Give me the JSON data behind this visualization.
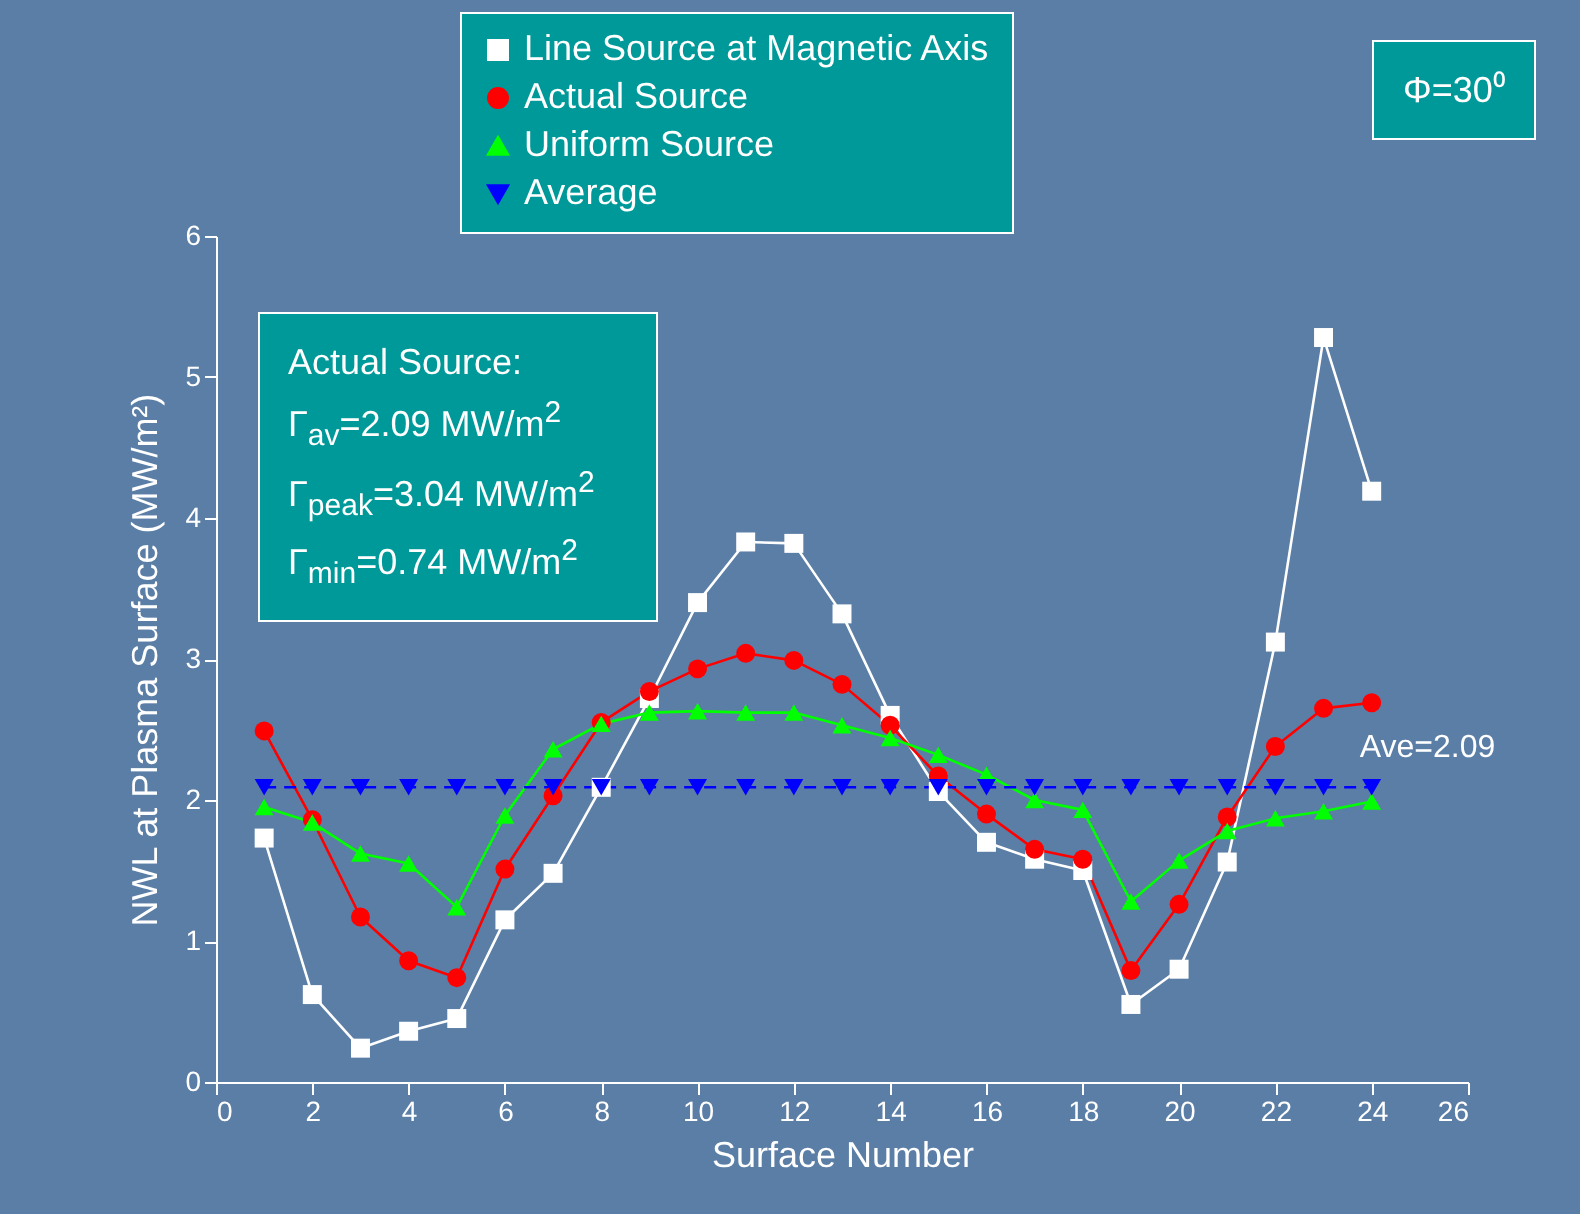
{
  "chart_data": {
    "type": "line",
    "xlabel": "Surface Number",
    "ylabel": "NWL at Plasma Surface (MW/m²)",
    "x": [
      1,
      2,
      3,
      4,
      5,
      6,
      7,
      8,
      9,
      10,
      11,
      12,
      13,
      14,
      15,
      16,
      17,
      18,
      19,
      20,
      21,
      22,
      23,
      24
    ],
    "xlim": [
      0,
      26
    ],
    "xticks": [
      0,
      2,
      4,
      6,
      8,
      10,
      12,
      14,
      16,
      18,
      20,
      22,
      24,
      26
    ],
    "ylim": [
      0,
      6
    ],
    "yticks": [
      0,
      1,
      2,
      3,
      4,
      5,
      6
    ],
    "grid": false,
    "legend": "top",
    "series": [
      {
        "name": "Line Source at Magnetic Axis",
        "color": "#ffffff",
        "marker": "square",
        "line_style": "solid",
        "values": [
          1.73,
          0.62,
          0.24,
          0.36,
          0.45,
          1.15,
          1.48,
          2.09,
          2.72,
          3.4,
          3.83,
          3.82,
          3.32,
          2.6,
          2.06,
          1.7,
          1.58,
          1.5,
          0.55,
          0.8,
          1.56,
          3.12,
          5.28,
          4.19
        ]
      },
      {
        "name": "Actual Source",
        "color": "#ff0000",
        "marker": "circle",
        "line_style": "solid",
        "values": [
          2.49,
          1.86,
          1.17,
          0.86,
          0.74,
          1.51,
          2.03,
          2.55,
          2.77,
          2.93,
          3.04,
          2.99,
          2.82,
          2.53,
          2.17,
          1.9,
          1.65,
          1.58,
          0.79,
          1.26,
          1.88,
          2.38,
          2.65,
          2.69
        ]
      },
      {
        "name": "Uniform Source",
        "color": "#00ff00",
        "marker": "triangle",
        "line_style": "solid",
        "values": [
          1.95,
          1.84,
          1.62,
          1.55,
          1.24,
          1.89,
          2.36,
          2.54,
          2.62,
          2.63,
          2.62,
          2.62,
          2.53,
          2.44,
          2.32,
          2.18,
          2.0,
          1.93,
          1.28,
          1.57,
          1.78,
          1.87,
          1.92,
          1.99
        ]
      },
      {
        "name": "Average",
        "color": "#0000ff",
        "marker": "triangle-down",
        "line_style": "dashed",
        "values": [
          2.09,
          2.09,
          2.09,
          2.09,
          2.09,
          2.09,
          2.09,
          2.09,
          2.09,
          2.09,
          2.09,
          2.09,
          2.09,
          2.09,
          2.09,
          2.09,
          2.09,
          2.09,
          2.09,
          2.09,
          2.09,
          2.09,
          2.09,
          2.09
        ]
      }
    ],
    "annotations": [
      {
        "text": "Ave=2.09",
        "x": 24,
        "y": 2.09
      },
      "Actual Source:",
      "Γ$_{av}$=2.09 MW/m$^{2}$",
      "Γ$_{peak}$=3.04 MW/m$^{2}$",
      "Γ$_{min}$=0.74 MW/m$^{2}$",
      "Φ=30⁰"
    ]
  }
}
